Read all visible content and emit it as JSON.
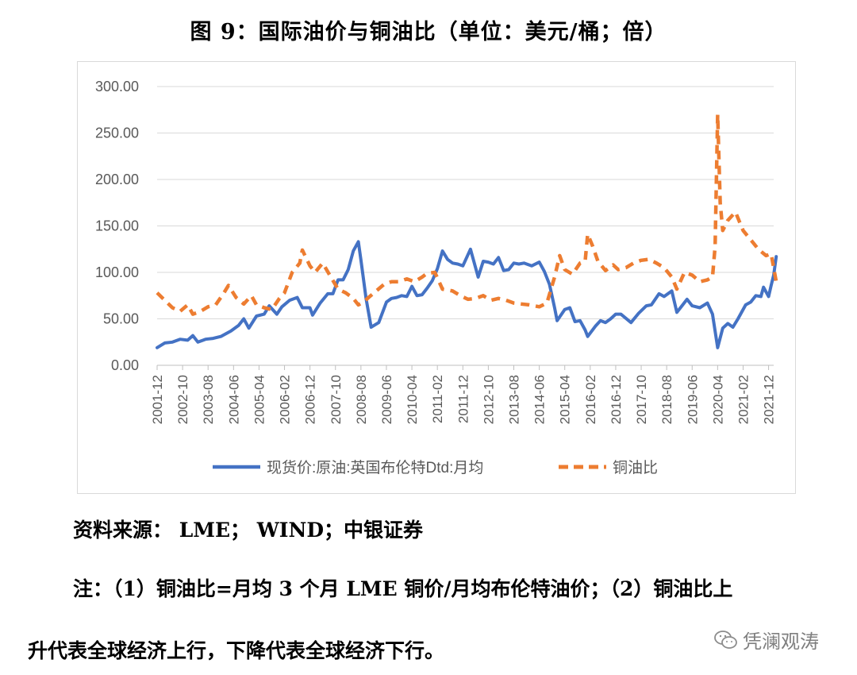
{
  "title": "图 9：国际油价与铜油比（单位：美元/桶；倍）",
  "source": "资料来源： LME； WIND；中银证券",
  "note_line1": "注：（1）铜油比=月均 3 个月 LME 铜价/月均布伦特油价；（2）铜油比上",
  "note_line2": "升代表全球经济上行，下降代表全球经济下行。",
  "watermark": "凭澜观涛",
  "watermark_icon": "wechat-icon",
  "chart_data": {
    "type": "line",
    "ylim": [
      0,
      300
    ],
    "yticks": [
      "0.00",
      "50.00",
      "100.00",
      "150.00",
      "200.00",
      "250.00",
      "300.00"
    ],
    "x_start": "2001-12",
    "x_end": "2022-02",
    "x_tick_labels": [
      "2001-12",
      "2002-10",
      "2003-08",
      "2004-06",
      "2005-04",
      "2006-02",
      "2006-12",
      "2007-10",
      "2008-08",
      "2009-06",
      "2010-04",
      "2011-02",
      "2011-12",
      "2012-10",
      "2013-08",
      "2014-06",
      "2015-04",
      "2016-02",
      "2016-12",
      "2017-10",
      "2018-08",
      "2019-06",
      "2020-04",
      "2021-02",
      "2021-12"
    ],
    "grid": true,
    "legend": "bottom",
    "series": [
      {
        "name": "现货价:原油:英国布伦特Dtd:月均",
        "color": "#4472c4",
        "style": "solid",
        "points": [
          [
            "2001-12",
            19
          ],
          [
            "2002-03",
            24
          ],
          [
            "2002-06",
            25
          ],
          [
            "2002-09",
            28
          ],
          [
            "2002-12",
            27
          ],
          [
            "2003-02",
            32
          ],
          [
            "2003-04",
            25
          ],
          [
            "2003-07",
            28
          ],
          [
            "2003-10",
            29
          ],
          [
            "2004-01",
            31
          ],
          [
            "2004-05",
            37
          ],
          [
            "2004-08",
            43
          ],
          [
            "2004-10",
            50
          ],
          [
            "2004-12",
            40
          ],
          [
            "2005-03",
            53
          ],
          [
            "2005-06",
            55
          ],
          [
            "2005-08",
            64
          ],
          [
            "2005-11",
            55
          ],
          [
            "2006-01",
            63
          ],
          [
            "2006-04",
            70
          ],
          [
            "2006-07",
            73
          ],
          [
            "2006-09",
            62
          ],
          [
            "2006-12",
            62
          ],
          [
            "2007-01",
            54
          ],
          [
            "2007-04",
            67
          ],
          [
            "2007-07",
            77
          ],
          [
            "2007-09",
            77
          ],
          [
            "2007-11",
            92
          ],
          [
            "2008-01",
            92
          ],
          [
            "2008-03",
            103
          ],
          [
            "2008-05",
            123
          ],
          [
            "2008-07",
            133
          ],
          [
            "2008-08",
            113
          ],
          [
            "2008-10",
            72
          ],
          [
            "2008-12",
            41
          ],
          [
            "2009-03",
            46
          ],
          [
            "2009-06",
            68
          ],
          [
            "2009-08",
            72
          ],
          [
            "2009-10",
            73
          ],
          [
            "2009-12",
            75
          ],
          [
            "2010-02",
            74
          ],
          [
            "2010-04",
            85
          ],
          [
            "2010-06",
            75
          ],
          [
            "2010-08",
            76
          ],
          [
            "2010-10",
            83
          ],
          [
            "2010-12",
            91
          ],
          [
            "2011-02",
            104
          ],
          [
            "2011-04",
            123
          ],
          [
            "2011-06",
            114
          ],
          [
            "2011-08",
            110
          ],
          [
            "2011-10",
            109
          ],
          [
            "2011-12",
            107
          ],
          [
            "2012-03",
            125
          ],
          [
            "2012-06",
            95
          ],
          [
            "2012-08",
            112
          ],
          [
            "2012-10",
            111
          ],
          [
            "2012-12",
            109
          ],
          [
            "2013-02",
            116
          ],
          [
            "2013-04",
            102
          ],
          [
            "2013-06",
            103
          ],
          [
            "2013-08",
            110
          ],
          [
            "2013-10",
            109
          ],
          [
            "2013-12",
            110
          ],
          [
            "2014-03",
            107
          ],
          [
            "2014-06",
            111
          ],
          [
            "2014-08",
            101
          ],
          [
            "2014-10",
            87
          ],
          [
            "2014-12",
            62
          ],
          [
            "2015-01",
            48
          ],
          [
            "2015-04",
            60
          ],
          [
            "2015-06",
            62
          ],
          [
            "2015-08",
            47
          ],
          [
            "2015-10",
            48
          ],
          [
            "2015-12",
            38
          ],
          [
            "2016-01",
            31
          ],
          [
            "2016-04",
            42
          ],
          [
            "2016-06",
            48
          ],
          [
            "2016-08",
            46
          ],
          [
            "2016-10",
            50
          ],
          [
            "2016-12",
            55
          ],
          [
            "2017-02",
            55
          ],
          [
            "2017-06",
            46
          ],
          [
            "2017-09",
            56
          ],
          [
            "2017-12",
            64
          ],
          [
            "2018-02",
            65
          ],
          [
            "2018-05",
            77
          ],
          [
            "2018-07",
            74
          ],
          [
            "2018-10",
            80
          ],
          [
            "2018-12",
            57
          ],
          [
            "2019-02",
            64
          ],
          [
            "2019-04",
            71
          ],
          [
            "2019-06",
            64
          ],
          [
            "2019-09",
            62
          ],
          [
            "2019-12",
            67
          ],
          [
            "2020-02",
            55
          ],
          [
            "2020-04",
            19
          ],
          [
            "2020-06",
            40
          ],
          [
            "2020-08",
            45
          ],
          [
            "2020-10",
            41
          ],
          [
            "2020-12",
            50
          ],
          [
            "2021-03",
            65
          ],
          [
            "2021-05",
            68
          ],
          [
            "2021-07",
            75
          ],
          [
            "2021-09",
            74
          ],
          [
            "2021-10",
            84
          ],
          [
            "2021-12",
            74
          ],
          [
            "2022-01",
            86
          ],
          [
            "2022-02",
            97
          ],
          [
            "2022-03",
            117
          ]
        ]
      },
      {
        "name": "铜油比",
        "color": "#ed7d31",
        "style": "dashed",
        "points": [
          [
            "2001-12",
            78
          ],
          [
            "2002-03",
            70
          ],
          [
            "2002-06",
            62
          ],
          [
            "2002-09",
            58
          ],
          [
            "2002-12",
            65
          ],
          [
            "2003-02",
            55
          ],
          [
            "2003-05",
            58
          ],
          [
            "2003-08",
            63
          ],
          [
            "2003-11",
            65
          ],
          [
            "2004-02",
            77
          ],
          [
            "2004-04",
            86
          ],
          [
            "2004-07",
            73
          ],
          [
            "2004-10",
            66
          ],
          [
            "2005-01",
            75
          ],
          [
            "2005-03",
            65
          ],
          [
            "2005-06",
            62
          ],
          [
            "2005-09",
            60
          ],
          [
            "2005-12",
            72
          ],
          [
            "2006-02",
            78
          ],
          [
            "2006-05",
            100
          ],
          [
            "2006-08",
            110
          ],
          [
            "2006-09",
            124
          ],
          [
            "2006-12",
            107
          ],
          [
            "2007-02",
            100
          ],
          [
            "2007-05",
            110
          ],
          [
            "2007-08",
            96
          ],
          [
            "2007-11",
            82
          ],
          [
            "2008-02",
            78
          ],
          [
            "2008-05",
            72
          ],
          [
            "2008-07",
            65
          ],
          [
            "2008-09",
            68
          ],
          [
            "2008-11",
            73
          ],
          [
            "2009-02",
            80
          ],
          [
            "2009-05",
            87
          ],
          [
            "2009-08",
            90
          ],
          [
            "2009-11",
            90
          ],
          [
            "2010-02",
            93
          ],
          [
            "2010-05",
            90
          ],
          [
            "2010-08",
            95
          ],
          [
            "2010-10",
            99
          ],
          [
            "2011-01",
            100
          ],
          [
            "2011-04",
            82
          ],
          [
            "2011-08",
            80
          ],
          [
            "2011-11",
            75
          ],
          [
            "2012-02",
            71
          ],
          [
            "2012-05",
            72
          ],
          [
            "2012-08",
            75
          ],
          [
            "2012-11",
            70
          ],
          [
            "2013-02",
            72
          ],
          [
            "2013-05",
            70
          ],
          [
            "2013-08",
            67
          ],
          [
            "2013-11",
            66
          ],
          [
            "2014-02",
            65
          ],
          [
            "2014-06",
            63
          ],
          [
            "2014-09",
            67
          ],
          [
            "2014-12",
            95
          ],
          [
            "2015-02",
            118
          ],
          [
            "2015-04",
            103
          ],
          [
            "2015-07",
            98
          ],
          [
            "2015-10",
            110
          ],
          [
            "2015-12",
            112
          ],
          [
            "2016-01",
            141
          ],
          [
            "2016-03",
            128
          ],
          [
            "2016-05",
            112
          ],
          [
            "2016-08",
            102
          ],
          [
            "2016-11",
            108
          ],
          [
            "2017-01",
            103
          ],
          [
            "2017-04",
            105
          ],
          [
            "2017-07",
            110
          ],
          [
            "2017-10",
            113
          ],
          [
            "2018-01",
            114
          ],
          [
            "2018-04",
            110
          ],
          [
            "2018-07",
            105
          ],
          [
            "2018-10",
            95
          ],
          [
            "2018-12",
            82
          ],
          [
            "2019-03",
            100
          ],
          [
            "2019-06",
            97
          ],
          [
            "2019-09",
            90
          ],
          [
            "2019-12",
            92
          ],
          [
            "2020-02",
            95
          ],
          [
            "2020-03",
            128
          ],
          [
            "2020-04",
            270
          ],
          [
            "2020-05",
            175
          ],
          [
            "2020-06",
            145
          ],
          [
            "2020-08",
            156
          ],
          [
            "2020-11",
            165
          ],
          [
            "2021-02",
            145
          ],
          [
            "2021-05",
            135
          ],
          [
            "2021-08",
            125
          ],
          [
            "2021-11",
            118
          ],
          [
            "2022-01",
            120
          ],
          [
            "2022-03",
            90
          ]
        ]
      }
    ]
  }
}
